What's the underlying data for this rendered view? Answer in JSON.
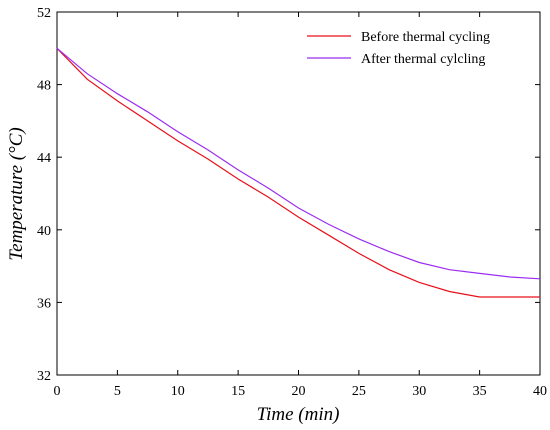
{
  "chart_data": {
    "type": "line",
    "xlabel": "Time (min)",
    "ylabel": "Temperature (°C)",
    "xlim": [
      0,
      40
    ],
    "ylim": [
      32,
      52
    ],
    "xticks": [
      0,
      5,
      10,
      15,
      20,
      25,
      30,
      35,
      40
    ],
    "yticks": [
      32,
      36,
      40,
      44,
      48,
      52
    ],
    "grid": false,
    "legend_position": "top-right",
    "series": [
      {
        "name": "Before thermal cycling",
        "color": "#e8101a",
        "x": [
          0,
          2.5,
          5,
          7.5,
          10,
          12.5,
          15,
          17.5,
          20,
          22.5,
          25,
          27.5,
          30,
          32.5,
          35,
          37.5,
          40
        ],
        "y": [
          50.0,
          48.3,
          47.1,
          46.0,
          44.9,
          43.9,
          42.8,
          41.8,
          40.7,
          39.7,
          38.7,
          37.8,
          37.1,
          36.6,
          36.3,
          36.3,
          36.3
        ]
      },
      {
        "name": "After thermal cylcling",
        "color": "#9b2df0",
        "x": [
          0,
          2.5,
          5,
          7.5,
          10,
          12.5,
          15,
          17.5,
          20,
          22.5,
          25,
          27.5,
          30,
          32.5,
          35,
          37.5,
          40
        ],
        "y": [
          50.0,
          48.6,
          47.5,
          46.5,
          45.4,
          44.4,
          43.3,
          42.3,
          41.2,
          40.3,
          39.5,
          38.8,
          38.2,
          37.8,
          37.6,
          37.4,
          37.3
        ]
      }
    ]
  }
}
